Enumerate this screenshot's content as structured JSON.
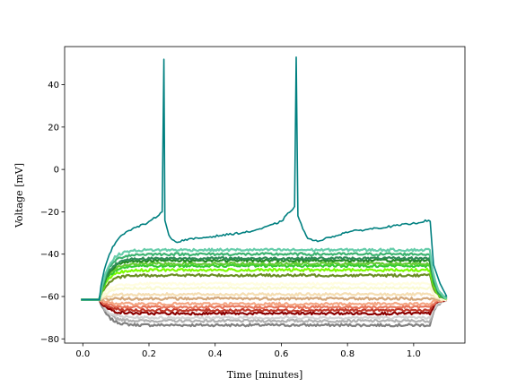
{
  "chart_data": {
    "type": "line",
    "title": "",
    "xlabel": "Time [minutes]",
    "ylabel": "Voltage [mV]",
    "xlim": [
      -0.055,
      1.155
    ],
    "ylim": [
      -82,
      58
    ],
    "xticks": [
      0.0,
      0.2,
      0.4,
      0.6,
      0.8,
      1.0
    ],
    "xtick_labels": [
      "0.0",
      "0.2",
      "0.4",
      "0.6",
      "0.8",
      "1.0"
    ],
    "yticks": [
      -80,
      -60,
      -40,
      -20,
      0,
      20,
      40
    ],
    "ytick_labels": [
      "−80",
      "−60",
      "−40",
      "−20",
      "0",
      "20",
      "40"
    ],
    "grid": false,
    "legend": "none",
    "stimulus": {
      "onset": 0.05,
      "offset": 1.05,
      "baseline": -61.5,
      "end": 1.1
    },
    "series": [
      {
        "color": "#808080",
        "steady": -73.5
      },
      {
        "color": "#b0b0b0",
        "steady": -71.5
      },
      {
        "color": "#d3d3d3",
        "steady": -70
      },
      {
        "color": "#8b0000",
        "steady": -68
      },
      {
        "color": "#c0392b",
        "steady": -66.5
      },
      {
        "color": "#e8745a",
        "steady": -65
      },
      {
        "color": "#f4a582",
        "steady": -63.5
      },
      {
        "color": "#d2a679",
        "steady": -61
      },
      {
        "color": "#f5deb3",
        "steady": -59
      },
      {
        "color": "#fafad2",
        "steady": -56
      },
      {
        "color": "#fffde0",
        "steady": -54
      },
      {
        "color": "#6b8e23",
        "steady": -50
      },
      {
        "color": "#7cfc00",
        "steady": -47.5
      },
      {
        "color": "#32cd32",
        "steady": -45.5
      },
      {
        "color": "#66cc33",
        "steady": -44.5
      },
      {
        "color": "#228b22",
        "steady": -43
      },
      {
        "color": "#2e8b57",
        "steady": -42
      },
      {
        "color": "#3cb371",
        "steady": -40
      },
      {
        "color": "#66cdaa",
        "steady": -38
      }
    ],
    "spiking_trace": {
      "color": "#008080",
      "points": [
        [
          -0.005,
          -61.5
        ],
        [
          0.05,
          -61.5
        ],
        [
          0.055,
          -55
        ],
        [
          0.065,
          -47
        ],
        [
          0.08,
          -40
        ],
        [
          0.1,
          -34
        ],
        [
          0.12,
          -30.5
        ],
        [
          0.15,
          -28
        ],
        [
          0.2,
          -25
        ],
        [
          0.24,
          -20
        ],
        [
          0.245,
          52
        ],
        [
          0.248,
          -24
        ],
        [
          0.26,
          -31
        ],
        [
          0.28,
          -34.5
        ],
        [
          0.3,
          -33.5
        ],
        [
          0.35,
          -32.5
        ],
        [
          0.4,
          -31.5
        ],
        [
          0.45,
          -30.5
        ],
        [
          0.5,
          -29.5
        ],
        [
          0.55,
          -27.5
        ],
        [
          0.6,
          -24.5
        ],
        [
          0.64,
          -17.5
        ],
        [
          0.645,
          53
        ],
        [
          0.65,
          -22
        ],
        [
          0.665,
          -28
        ],
        [
          0.68,
          -32.5
        ],
        [
          0.7,
          -34
        ],
        [
          0.75,
          -32
        ],
        [
          0.8,
          -29.5
        ],
        [
          0.85,
          -28.5
        ],
        [
          0.9,
          -27.5
        ],
        [
          0.95,
          -26.5
        ],
        [
          1.0,
          -25.5
        ],
        [
          1.045,
          -24
        ],
        [
          1.05,
          -24.5
        ],
        [
          1.06,
          -45
        ],
        [
          1.08,
          -54
        ],
        [
          1.1,
          -60
        ]
      ]
    }
  }
}
